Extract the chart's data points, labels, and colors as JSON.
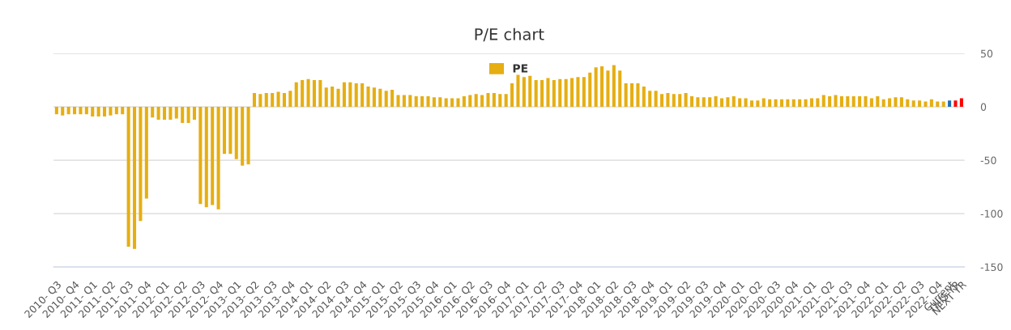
{
  "chart_data": {
    "type": "bar",
    "title": "P/E chart",
    "categories": [
      "2010- Q3",
      null,
      null,
      "2010- Q4",
      null,
      null,
      "2011- Q1",
      null,
      null,
      "2011- Q2",
      null,
      null,
      "2011- Q3",
      null,
      null,
      "2011- Q4",
      null,
      null,
      "2012- Q1",
      null,
      null,
      "2012- Q2",
      null,
      null,
      "2012- Q3",
      null,
      null,
      "2012- Q4",
      null,
      null,
      "2013- Q1",
      null,
      null,
      "2013- Q2",
      null,
      null,
      "2013- Q3",
      null,
      null,
      "2013- Q4",
      null,
      null,
      "2014- Q1",
      null,
      null,
      "2014- Q2",
      null,
      null,
      "2014- Q3",
      null,
      null,
      "2014- Q4",
      null,
      null,
      "2015- Q1",
      null,
      null,
      "2015- Q2",
      null,
      null,
      "2015- Q3",
      null,
      null,
      "2015- Q4",
      null,
      null,
      "2016- Q1",
      null,
      null,
      "2016- Q2",
      null,
      null,
      "2016- Q3",
      null,
      null,
      "2016- Q4",
      null,
      null,
      "2017- Q1",
      null,
      null,
      "2017- Q2",
      null,
      null,
      "2017- Q3",
      null,
      null,
      "2017- Q4",
      null,
      null,
      "2018- Q1",
      null,
      null,
      "2018- Q2",
      null,
      null,
      "2018- Q3",
      null,
      null,
      "2018- Q4",
      null,
      null,
      "2019- Q1",
      null,
      null,
      "2019- Q2",
      null,
      null,
      "2019- Q3",
      null,
      null,
      "2019- Q4",
      null,
      null,
      "2020- Q1",
      null,
      null,
      "2020- Q2",
      null,
      null,
      "2020- Q3",
      null,
      null,
      "2020- Q4",
      null,
      null,
      "2021- Q1",
      null,
      null,
      "2021- Q2",
      null,
      null,
      "2021- Q3",
      null,
      null,
      "2021- Q4",
      null,
      null,
      "2022- Q1",
      null,
      null,
      "2022- Q2",
      null,
      null,
      "2022- Q3",
      null,
      null,
      "2022- Q4",
      null,
      "Current",
      "THIS YR",
      "NEXT YR"
    ],
    "series": [
      {
        "name": "PE",
        "color": "#e6ae12",
        "values": [
          -7,
          -8,
          -7,
          -7,
          -7,
          -7,
          -9,
          -9,
          -9,
          -8,
          -7,
          -7,
          -131,
          -133,
          -107,
          -86,
          -10,
          -12,
          -12,
          -12,
          -11,
          -15,
          -15,
          -12,
          -91,
          -94,
          -92,
          -96,
          -44,
          -44,
          -49,
          -55,
          -54,
          13,
          12,
          13,
          13,
          14,
          13,
          15,
          23,
          25,
          26,
          25,
          25,
          18,
          19,
          17,
          23,
          23,
          22,
          22,
          19,
          18,
          17,
          15,
          16,
          11,
          11,
          11,
          10,
          10,
          10,
          9,
          9,
          8,
          8,
          8,
          10,
          11,
          12,
          11,
          13,
          13,
          12,
          12,
          22,
          30,
          28,
          29,
          25,
          25,
          27,
          25,
          26,
          26,
          27,
          28,
          28,
          32,
          37,
          38,
          34,
          39,
          34,
          22,
          22,
          22,
          19,
          15,
          15,
          12,
          13,
          12,
          12,
          13,
          10,
          9,
          9,
          9,
          10,
          8,
          9,
          10,
          8,
          8,
          6,
          6,
          8,
          7,
          7,
          7,
          7,
          7,
          7,
          7,
          8,
          8,
          11,
          10,
          11,
          10,
          10,
          10,
          10,
          10,
          8,
          10,
          7,
          8,
          9,
          9,
          7,
          6,
          6,
          5,
          7,
          5,
          5,
          6,
          6,
          8
        ],
        "colors": [
          "#e6ae12",
          "#e6ae12",
          "#e6ae12",
          "#e6ae12",
          "#e6ae12",
          "#e6ae12",
          "#e6ae12",
          "#e6ae12",
          "#e6ae12",
          "#e6ae12",
          "#e6ae12",
          "#e6ae12",
          "#e6ae12",
          "#e6ae12",
          "#e6ae12",
          "#e6ae12",
          "#e6ae12",
          "#e6ae12",
          "#e6ae12",
          "#e6ae12",
          "#e6ae12",
          "#e6ae12",
          "#e6ae12",
          "#e6ae12",
          "#e6ae12",
          "#e6ae12",
          "#e6ae12",
          "#e6ae12",
          "#e6ae12",
          "#e6ae12",
          "#e6ae12",
          "#e6ae12",
          "#e6ae12",
          "#e6ae12",
          "#e6ae12",
          "#e6ae12",
          "#e6ae12",
          "#e6ae12",
          "#e6ae12",
          "#e6ae12",
          "#e6ae12",
          "#e6ae12",
          "#e6ae12",
          "#e6ae12",
          "#e6ae12",
          "#e6ae12",
          "#e6ae12",
          "#e6ae12",
          "#e6ae12",
          "#e6ae12",
          "#e6ae12",
          "#e6ae12",
          "#e6ae12",
          "#e6ae12",
          "#e6ae12",
          "#e6ae12",
          "#e6ae12",
          "#e6ae12",
          "#e6ae12",
          "#e6ae12",
          "#e6ae12",
          "#e6ae12",
          "#e6ae12",
          "#e6ae12",
          "#e6ae12",
          "#e6ae12",
          "#e6ae12",
          "#e6ae12",
          "#e6ae12",
          "#e6ae12",
          "#e6ae12",
          "#e6ae12",
          "#e6ae12",
          "#e6ae12",
          "#e6ae12",
          "#e6ae12",
          "#e6ae12",
          "#e6ae12",
          "#e6ae12",
          "#e6ae12",
          "#e6ae12",
          "#e6ae12",
          "#e6ae12",
          "#e6ae12",
          "#e6ae12",
          "#e6ae12",
          "#e6ae12",
          "#e6ae12",
          "#e6ae12",
          "#e6ae12",
          "#e6ae12",
          "#e6ae12",
          "#e6ae12",
          "#e6ae12",
          "#e6ae12",
          "#e6ae12",
          "#e6ae12",
          "#e6ae12",
          "#e6ae12",
          "#e6ae12",
          "#e6ae12",
          "#e6ae12",
          "#e6ae12",
          "#e6ae12",
          "#e6ae12",
          "#e6ae12",
          "#e6ae12",
          "#e6ae12",
          "#e6ae12",
          "#e6ae12",
          "#e6ae12",
          "#e6ae12",
          "#e6ae12",
          "#e6ae12",
          "#e6ae12",
          "#e6ae12",
          "#e6ae12",
          "#e6ae12",
          "#e6ae12",
          "#e6ae12",
          "#e6ae12",
          "#e6ae12",
          "#e6ae12",
          "#e6ae12",
          "#e6ae12",
          "#e6ae12",
          "#e6ae12",
          "#e6ae12",
          "#e6ae12",
          "#e6ae12",
          "#e6ae12",
          "#e6ae12",
          "#e6ae12",
          "#e6ae12",
          "#e6ae12",
          "#e6ae12",
          "#e6ae12",
          "#e6ae12",
          "#e6ae12",
          "#e6ae12",
          "#e6ae12",
          "#e6ae12",
          "#e6ae12",
          "#e6ae12",
          "#e6ae12",
          "#e6ae12",
          "#e6ae12",
          "#e6ae12",
          "#e6ae12",
          "#1f6fb4",
          "#ff0000",
          "#ff0000"
        ]
      }
    ],
    "ylim": [
      -150,
      50
    ],
    "yticks": [
      -150,
      -100,
      -50,
      0,
      50
    ],
    "grid": "y",
    "legend": "top"
  }
}
